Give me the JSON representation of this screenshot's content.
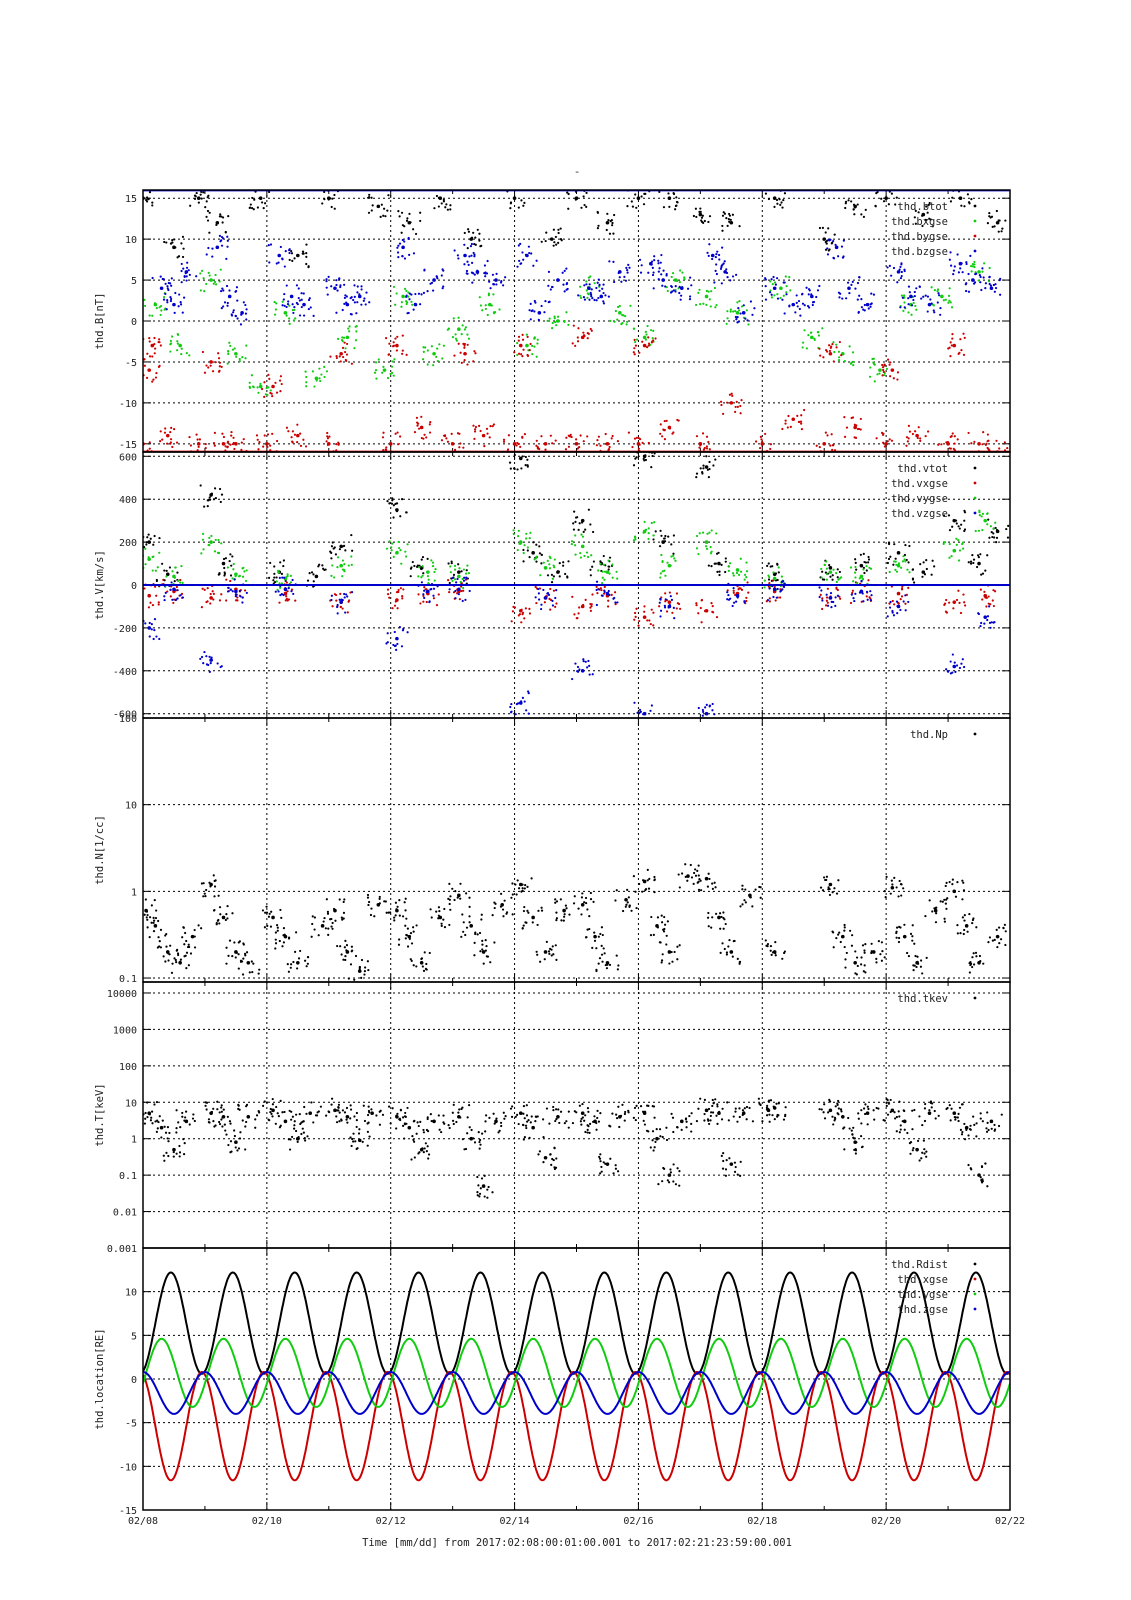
{
  "page": {
    "top_mark": "-",
    "xlabel": "Time [mm/dd]  from 2017:02:08:00:01:00.001  to  2017:02:21:23:59:00.001",
    "x_range_days": [
      0,
      14
    ],
    "x_ticks": [
      {
        "day": 0,
        "label": "02/08"
      },
      {
        "day": 2,
        "label": "02/10"
      },
      {
        "day": 4,
        "label": "02/12"
      },
      {
        "day": 6,
        "label": "02/14"
      },
      {
        "day": 8,
        "label": "02/16"
      },
      {
        "day": 10,
        "label": "02/18"
      },
      {
        "day": 12,
        "label": "02/20"
      },
      {
        "day": 14,
        "label": "02/22"
      }
    ]
  },
  "chart_data": [
    {
      "type": "scatter",
      "ylabel": "thd.B[nT]",
      "yscale": "linear",
      "ylim": [
        -16,
        16
      ],
      "y_ticks": [
        -15,
        -10,
        -5,
        0,
        5,
        10,
        15
      ],
      "grid": true,
      "legend_position": "top-right",
      "series": [
        {
          "name": "thd.btot",
          "color": "#000000",
          "x": [
            0,
            0.5,
            0.9,
            1.2,
            1.9,
            2.5,
            3.0,
            3.8,
            4.3,
            4.8,
            5.3,
            6.0,
            6.6,
            7.0,
            7.5,
            8.0,
            8.5,
            9.0,
            9.5,
            10.2,
            11.0,
            11.5,
            12.0,
            12.6,
            13.2,
            13.8
          ],
          "y": [
            15,
            9,
            15,
            12,
            15,
            8,
            15,
            14,
            12,
            15,
            10,
            15,
            10,
            15,
            12,
            15,
            15,
            13,
            12,
            15,
            10,
            14,
            15,
            13,
            15,
            12
          ]
        },
        {
          "name": "thd.bxgse",
          "color": "#11cc11",
          "x": [
            0.2,
            0.6,
            1.1,
            1.5,
            1.9,
            2.3,
            2.8,
            3.3,
            3.9,
            4.2,
            4.7,
            5.1,
            5.6,
            6.2,
            6.7,
            7.2,
            7.7,
            8.1,
            8.6,
            9.1,
            9.6,
            10.3,
            10.8,
            11.3,
            11.9,
            12.4,
            12.9,
            13.5
          ],
          "y": [
            2,
            -3,
            5,
            -4,
            -8,
            1,
            -7,
            -2,
            -6,
            3,
            -4,
            -1,
            2,
            -3,
            0,
            4,
            1,
            -2,
            5,
            3,
            1,
            4,
            -2,
            -4,
            -6,
            2,
            3,
            6
          ]
        },
        {
          "name": "thd.bygse",
          "color": "#cc0000",
          "x": [
            0,
            0.1,
            0.15,
            0.4,
            0.9,
            1.1,
            1.3,
            1.5,
            2.0,
            2.1,
            2.5,
            3.0,
            3.2,
            4.0,
            4.1,
            4.5,
            5.0,
            5.2,
            5.5,
            6.0,
            6.1,
            6.5,
            7.0,
            7.1,
            7.5,
            8.0,
            8.1,
            8.5,
            9.0,
            9.5,
            10.0,
            10.5,
            11.0,
            11.1,
            11.5,
            12.0,
            12.1,
            12.5,
            13.0,
            13.1,
            13.5,
            13.8
          ],
          "y": [
            -15,
            -6,
            -3,
            -14,
            -15,
            -5,
            -15,
            -15,
            -15,
            -8,
            -14,
            -15,
            -4,
            -15,
            -3,
            -13,
            -15,
            -4,
            -14,
            -15,
            -3,
            -15,
            -15,
            -2,
            -15,
            -15,
            -3,
            -13,
            -15,
            -10,
            -15,
            -12,
            -15,
            -4,
            -13,
            -15,
            -6,
            -14,
            -15,
            -3,
            -15,
            -16
          ]
        },
        {
          "name": "thd.bzgse",
          "color": "#0000cc",
          "x": [
            0.3,
            0.5,
            0.7,
            1.2,
            1.4,
            1.6,
            2.2,
            2.4,
            2.6,
            3.1,
            3.3,
            3.5,
            4.2,
            4.4,
            4.7,
            5.2,
            5.4,
            5.7,
            6.2,
            6.4,
            6.7,
            7.2,
            7.4,
            7.7,
            8.2,
            8.4,
            8.7,
            9.2,
            9.4,
            9.7,
            10.2,
            10.5,
            10.8,
            11.2,
            11.4,
            11.7,
            12.2,
            12.4,
            12.7,
            13.2,
            13.4,
            13.7
          ],
          "y": [
            4,
            2,
            6,
            9,
            3,
            1,
            8,
            3,
            2,
            4,
            2,
            3,
            9,
            2,
            5,
            8,
            6,
            5,
            8,
            1,
            5,
            4,
            3,
            6,
            7,
            5,
            4,
            8,
            6,
            1,
            4,
            2,
            3,
            9,
            4,
            2,
            6,
            3,
            2,
            7,
            5,
            4
          ]
        }
      ]
    },
    {
      "type": "scatter",
      "ylabel": "thd.V[km/s]",
      "yscale": "linear",
      "ylim": [
        -620,
        620
      ],
      "y_ticks": [
        -600,
        -400,
        -200,
        0,
        200,
        400,
        600
      ],
      "grid": true,
      "legend_position": "top-right",
      "series": [
        {
          "name": "thd.vtot",
          "color": "#000000",
          "x": [
            0.1,
            0.4,
            1.1,
            1.3,
            2.2,
            2.8,
            3.2,
            4.1,
            4.5,
            5.1,
            6.1,
            6.3,
            6.7,
            7.1,
            7.4,
            8.1,
            8.4,
            9.1,
            9.3,
            10.2,
            11.1,
            11.6,
            12.2,
            12.6,
            13.1,
            13.5,
            13.8
          ],
          "y": [
            200,
            50,
            420,
            100,
            60,
            40,
            180,
            350,
            80,
            60,
            590,
            150,
            60,
            300,
            100,
            600,
            200,
            550,
            100,
            50,
            80,
            90,
            150,
            60,
            300,
            100,
            250
          ]
        },
        {
          "name": "thd.vxgse",
          "color": "#cc0000",
          "x": [
            0.1,
            0.5,
            1.1,
            1.5,
            2.3,
            3.2,
            4.1,
            4.6,
            5.1,
            6.1,
            6.5,
            7.1,
            7.5,
            8.1,
            8.5,
            9.1,
            9.6,
            10.2,
            11.1,
            11.6,
            12.2,
            13.1,
            13.6
          ],
          "y": [
            -50,
            -30,
            -60,
            -20,
            -40,
            -80,
            -70,
            -40,
            -30,
            -120,
            -60,
            -100,
            -50,
            -150,
            -80,
            -120,
            -40,
            -30,
            -60,
            -30,
            -40,
            -80,
            -50
          ]
        },
        {
          "name": "thd.vygse",
          "color": "#11cc11",
          "x": [
            0.1,
            0.5,
            1.1,
            1.5,
            2.3,
            3.2,
            4.1,
            4.6,
            5.1,
            6.1,
            6.5,
            7.1,
            7.5,
            8.1,
            8.5,
            9.1,
            9.6,
            10.2,
            11.1,
            11.6,
            12.2,
            13.1,
            13.6
          ],
          "y": [
            120,
            40,
            200,
            50,
            30,
            90,
            150,
            60,
            40,
            200,
            80,
            180,
            60,
            250,
            90,
            200,
            70,
            30,
            60,
            40,
            90,
            160,
            300
          ]
        },
        {
          "name": "thd.vzgse",
          "color": "#0000cc",
          "x": [
            0.1,
            0.5,
            1.1,
            1.5,
            2.3,
            3.2,
            4.1,
            4.6,
            5.1,
            6.1,
            6.5,
            7.1,
            7.5,
            8.1,
            8.5,
            9.1,
            9.6,
            10.2,
            11.1,
            11.6,
            12.2,
            13.1,
            13.6
          ],
          "y": [
            -200,
            -20,
            -350,
            -30,
            -20,
            -80,
            -250,
            -30,
            -20,
            -550,
            -60,
            -400,
            -40,
            -600,
            -100,
            -600,
            -50,
            -20,
            -60,
            -30,
            -100,
            -380,
            -150
          ]
        }
      ]
    },
    {
      "type": "scatter",
      "ylabel": "thd.N[1/cc]",
      "yscale": "log",
      "ylim": [
        0.09,
        100
      ],
      "y_ticks": [
        0.1,
        1,
        10,
        100
      ],
      "grid": true,
      "legend_position": "top-right",
      "series": [
        {
          "name": "thd.Np",
          "color": "#000000",
          "x": [
            0.05,
            0.2,
            0.4,
            0.6,
            0.8,
            1.1,
            1.3,
            1.5,
            1.7,
            2.1,
            2.3,
            2.5,
            2.9,
            3.1,
            3.3,
            3.5,
            3.8,
            4.1,
            4.3,
            4.5,
            4.8,
            5.1,
            5.3,
            5.5,
            5.8,
            6.1,
            6.3,
            6.5,
            6.8,
            7.1,
            7.3,
            7.5,
            7.8,
            8.1,
            8.3,
            8.5,
            8.8,
            9.1,
            9.3,
            9.5,
            9.8,
            10.2,
            11.1,
            11.3,
            11.5,
            11.8,
            12.1,
            12.3,
            12.5,
            12.8,
            13.1,
            13.3,
            13.5,
            13.8
          ],
          "y": [
            0.6,
            0.4,
            0.2,
            0.15,
            0.3,
            1.2,
            0.5,
            0.2,
            0.15,
            0.5,
            0.3,
            0.15,
            0.4,
            0.6,
            0.2,
            0.12,
            0.7,
            0.6,
            0.3,
            0.15,
            0.5,
            0.9,
            0.4,
            0.2,
            0.7,
            1.2,
            0.5,
            0.2,
            0.6,
            0.7,
            0.3,
            0.15,
            0.8,
            1.3,
            0.4,
            0.2,
            1.5,
            1.4,
            0.5,
            0.2,
            0.9,
            0.2,
            1.2,
            0.3,
            0.15,
            0.2,
            1.1,
            0.3,
            0.15,
            0.6,
            1.0,
            0.4,
            0.15,
            0.3
          ]
        }
      ]
    },
    {
      "type": "scatter",
      "ylabel": "thd.T[keV]",
      "yscale": "log",
      "ylim": [
        0.001,
        20000
      ],
      "y_ticks": [
        0.001,
        0.01,
        0.1,
        1,
        10,
        100,
        1000,
        10000
      ],
      "y_tick_labels": [
        "0.001",
        "0.01",
        "0.1",
        "1",
        "10",
        "100",
        "1000",
        "10000"
      ],
      "grid": true,
      "legend_position": "top-right",
      "series": [
        {
          "name": "thd.tkev",
          "color": "#000000",
          "x": [
            0.1,
            0.3,
            0.5,
            0.7,
            1.1,
            1.3,
            1.5,
            1.7,
            2.1,
            2.3,
            2.5,
            2.7,
            3.1,
            3.3,
            3.5,
            3.7,
            4.1,
            4.3,
            4.5,
            4.7,
            5.1,
            5.3,
            5.5,
            5.7,
            6.1,
            6.3,
            6.5,
            6.7,
            7.1,
            7.3,
            7.5,
            7.7,
            8.1,
            8.3,
            8.5,
            8.7,
            9.1,
            9.3,
            9.5,
            9.7,
            10.1,
            10.2,
            11.1,
            11.3,
            11.5,
            11.7,
            12.1,
            12.3,
            12.5,
            12.7,
            13.1,
            13.3,
            13.5,
            13.7
          ],
          "y": [
            5,
            2,
            0.5,
            3,
            5,
            4,
            0.8,
            4,
            6,
            3,
            1,
            5,
            6,
            4,
            0.9,
            5,
            4,
            2,
            0.5,
            3,
            4,
            1,
            0.05,
            3,
            5,
            2,
            0.3,
            4,
            5,
            3,
            0.2,
            4,
            5,
            1,
            0.1,
            3,
            6,
            5,
            0.2,
            5,
            6,
            7,
            6,
            4,
            0.8,
            5,
            6,
            3,
            0.5,
            5,
            5,
            2,
            0.1,
            3
          ]
        }
      ]
    },
    {
      "type": "line",
      "ylabel": "thd.location[RE]",
      "yscale": "linear",
      "ylim": [
        -15,
        15
      ],
      "y_ticks": [
        -15,
        -10,
        -5,
        0,
        5,
        10
      ],
      "grid": true,
      "legend_position": "top-right",
      "orbit_period_days": 1.0,
      "series": [
        {
          "name": "thd.Rdist",
          "color": "#000000",
          "amplitude_mean": 0.5,
          "amplitude": 11.7,
          "phase_days": 0.45,
          "shape": "rdist",
          "min": 0.6,
          "max": 12.2
        },
        {
          "name": "thd.xgse",
          "color": "#cc0000",
          "mean": -5.4,
          "amplitude": 6.2,
          "phase_days": 0.45,
          "shape": "xgse",
          "min": -11.6,
          "max": 0.8
        },
        {
          "name": "thd.ygse",
          "color": "#11cc11",
          "mean": 0.7,
          "amplitude": 4.0,
          "phase_days": 0.3,
          "shape": "ygse",
          "min": -3.3,
          "max": 4.6
        },
        {
          "name": "thd.zgse",
          "color": "#0000cc",
          "mean": -1.6,
          "amplitude": 2.4,
          "phase_days": 0.0,
          "shape": "zgse",
          "min": -4.0,
          "max": 0.8
        }
      ]
    }
  ]
}
